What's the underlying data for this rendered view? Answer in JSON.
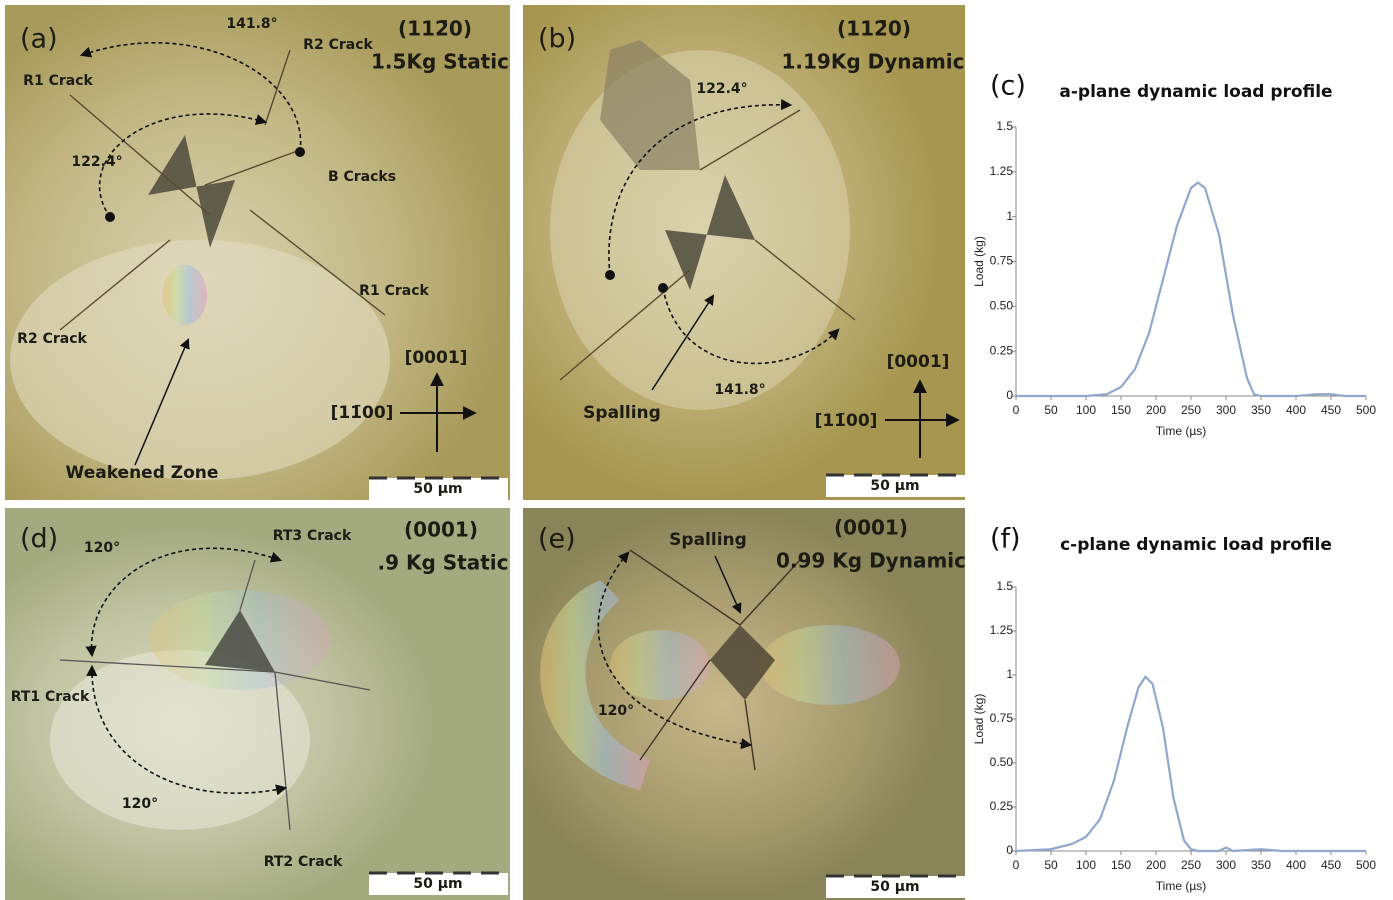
{
  "panels": [
    {
      "texts": [
        "(a)",
        "(112̄0)",
        "1.5Kg Static",
        "141.8°",
        "R2 Crack",
        "R1 Crack",
        "122.4°",
        "B Cracks",
        "R1 Crack",
        "R2 Crack",
        "[0001]",
        "[11̄00]",
        "Weakened Zone",
        "50 µm"
      ]
    },
    {
      "texts": [
        "(b)",
        "(112̄0)",
        "1.19Kg Dynamic",
        "122.4°",
        "Spalling",
        "141.8°",
        "[0001]",
        "[11̄00]",
        "50 µm"
      ]
    },
    {
      "texts": [
        "(d)",
        "120°",
        "RT3 Crack",
        "(0001)",
        ".9 Kg Static",
        "RT1 Crack",
        "120°",
        "RT2 Crack",
        "50 µm"
      ]
    },
    {
      "texts": [
        "(e)",
        "Spalling",
        "(0001)",
        "0.99 Kg Dynamic",
        "120°",
        "50 µm"
      ]
    }
  ],
  "chart_data": [
    {
      "type": "line",
      "panel_label": "(c)",
      "title": "a-plane dynamic load profile",
      "x_label": "Time (µs)",
      "y_label": "Load (kg)",
      "x": [
        0,
        50,
        100,
        130,
        150,
        170,
        190,
        210,
        230,
        250,
        260,
        270,
        290,
        310,
        330,
        340,
        350,
        400,
        430,
        450,
        470,
        500
      ],
      "series": [
        {
          "color": "#8fa8cc",
          "values": [
            0,
            0,
            0,
            0.01,
            0.05,
            0.15,
            0.35,
            0.65,
            0.95,
            1.16,
            1.19,
            1.16,
            0.9,
            0.45,
            0.1,
            0.01,
            0,
            0,
            0.01,
            0.01,
            0,
            0
          ]
        }
      ],
      "xlim": [
        0,
        500
      ],
      "xticks": [
        0,
        50,
        100,
        150,
        200,
        250,
        300,
        350,
        400,
        450,
        500
      ],
      "ylim": [
        0,
        1.5
      ],
      "yticks": [
        0,
        {
          "value": 0.25,
          "label": "0.25"
        },
        {
          "value": 0.5,
          "label": "0.50"
        },
        {
          "value": 0.75,
          "label": "0.75"
        },
        1,
        {
          "value": 1.25,
          "label": "1.25"
        },
        1.5
      ]
    },
    {
      "type": "line",
      "panel_label": "(f)",
      "title": "c-plane dynamic load profile",
      "x_label": "Time (µs)",
      "y_label": "Load (kg)",
      "x": [
        0,
        50,
        80,
        100,
        120,
        140,
        160,
        175,
        185,
        195,
        210,
        225,
        240,
        250,
        260,
        290,
        300,
        310,
        350,
        380,
        450,
        500
      ],
      "series": [
        {
          "color": "#8fa8cc",
          "values": [
            0,
            0.01,
            0.04,
            0.08,
            0.18,
            0.4,
            0.72,
            0.93,
            0.99,
            0.95,
            0.7,
            0.3,
            0.06,
            0.01,
            0,
            0,
            0.02,
            0,
            0.01,
            0,
            0,
            0
          ]
        }
      ],
      "xlim": [
        0,
        500
      ],
      "xticks": [
        0,
        50,
        100,
        150,
        200,
        250,
        300,
        350,
        400,
        450,
        500
      ],
      "ylim": [
        0,
        1.5
      ],
      "yticks": [
        0,
        {
          "value": 0.25,
          "label": "0.25"
        },
        {
          "value": 0.5,
          "label": "0.50"
        },
        {
          "value": 0.75,
          "label": "0.75"
        },
        1,
        {
          "value": 1.25,
          "label": "1.25"
        },
        1.5
      ]
    }
  ]
}
